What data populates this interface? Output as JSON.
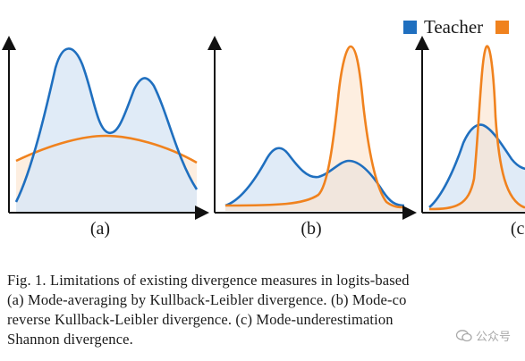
{
  "colors": {
    "teacher": "#1f6fbf",
    "teacher_fill": "#dbe8f6",
    "student": "#f0821e",
    "student_fill": "#fbe3cc",
    "axis": "#111111"
  },
  "legend": {
    "teacher_label": "Teacher"
  },
  "panels": [
    {
      "label": "(a)"
    },
    {
      "label": "(b)"
    },
    {
      "label": "(c)"
    }
  ],
  "chart_data": {
    "type": "area",
    "note_units": "relative density on an unlabeled axis (0 to 1)",
    "panels": [
      {
        "label": "(a)",
        "teacher": {
          "peaks": [
            {
              "center": 0.33,
              "height": 0.88
            },
            {
              "center": 0.72,
              "height": 0.71
            }
          ],
          "shape": "bimodal"
        },
        "student": {
          "shape": "broad unimodal",
          "center": 0.5,
          "height": 0.4
        }
      },
      {
        "label": "(b)",
        "teacher": {
          "peaks": [
            {
              "center": 0.27,
              "height": 0.33
            },
            {
              "center": 0.72,
              "height": 0.25
            }
          ],
          "shape": "bimodal"
        },
        "student": {
          "shape": "narrow unimodal",
          "center": 0.72,
          "height": 0.9
        }
      },
      {
        "label": "(c)",
        "teacher": {
          "peaks": [
            {
              "center": 0.45,
              "height": 0.45
            }
          ],
          "shape": "partial view"
        },
        "student": {
          "shape": "narrow unimodal",
          "center": 0.45,
          "height": 0.95
        }
      }
    ]
  },
  "caption": {
    "line1": "Fig. 1.  Limitations of existing divergence measures in logits-based",
    "line2": "(a) Mode-averaging by Kullback-Leibler divergence. (b) Mode-co",
    "line3": "reverse Kullback-Leibler divergence. (c) Mode-underestimation",
    "line4": "Shannon divergence."
  },
  "watermark": {
    "text": "公众号"
  }
}
